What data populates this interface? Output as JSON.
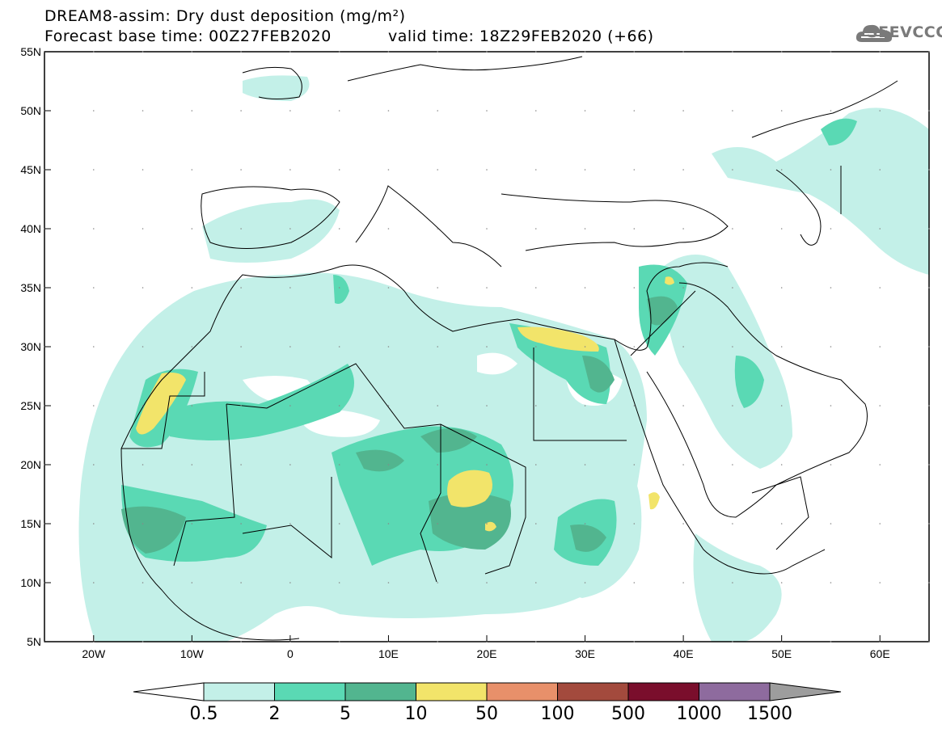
{
  "header": {
    "line1": "DREAM8-assim: Dry dust deposition (mg/m²)",
    "line2": "Forecast base time: 00Z27FEB2020",
    "line2b": "valid time: 18Z29FEB2020 (+66)"
  },
  "logo": {
    "text": "SEEVCCC",
    "icon": "cloud-icon"
  },
  "map": {
    "lon_range": [
      -25,
      65
    ],
    "lat_range": [
      5,
      55
    ],
    "x_ticks": [
      "20W",
      "10W",
      "0",
      "10E",
      "20E",
      "30E",
      "40E",
      "50E",
      "60E"
    ],
    "y_ticks": [
      "55N",
      "50N",
      "45N",
      "40N",
      "35N",
      "30N",
      "25N",
      "20N",
      "15N",
      "10N",
      "5N"
    ]
  },
  "colorbar": {
    "labels": [
      "0.5",
      "2",
      "5",
      "10",
      "50",
      "100",
      "500",
      "1000",
      "1500"
    ],
    "colors": [
      "#c3f0e8",
      "#5ad9b4",
      "#52b58f",
      "#f2e46a",
      "#e8906a",
      "#a34a3d",
      "#7a0e2c",
      "#8e6b9e"
    ],
    "overflow_color": "#9d9d9d",
    "underflow_color": "#ffffff"
  }
}
